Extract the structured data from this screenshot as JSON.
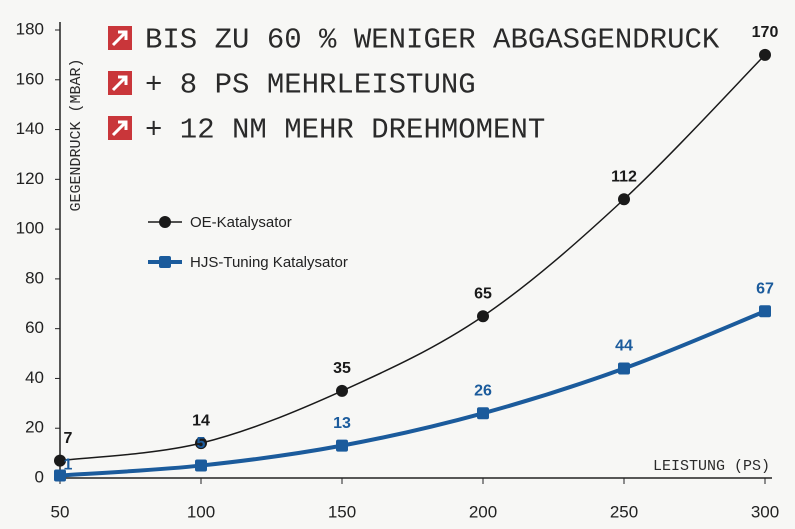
{
  "chart_data": {
    "type": "line",
    "annotations": [
      "BIS ZU 60 % WENIGER ABGASGENDRUCK",
      "+ 8 PS MEHRLEISTUNG",
      "+ 12 NM MEHR DREHMOMENT"
    ],
    "y_label": "GEGENDRUCK (MBAR)",
    "x_label": "LEISTUNG (PS)",
    "x": [
      50,
      100,
      150,
      200,
      250,
      300
    ],
    "series": [
      {
        "name": "OE-Katalysator",
        "color": "#1a1a1a",
        "values": [
          7,
          14,
          35,
          65,
          112,
          170
        ]
      },
      {
        "name": "HJS-Tuning Katalysator",
        "color": "#1b5b9c",
        "values": [
          1,
          5,
          13,
          26,
          44,
          67
        ]
      }
    ],
    "xlim": [
      50,
      300
    ],
    "xticks": [
      50,
      100,
      150,
      200,
      250,
      300
    ],
    "ylim": [
      0,
      180
    ],
    "yticks": [
      0,
      20,
      40,
      60,
      80,
      100,
      120,
      140,
      160,
      180
    ],
    "grid": false
  }
}
